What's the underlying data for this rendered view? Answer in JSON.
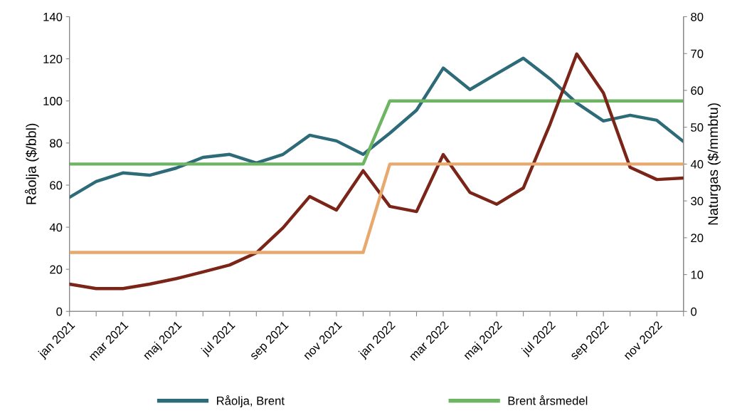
{
  "chart_data": {
    "type": "line",
    "ylabel": "Råolja ($/bbl)",
    "y2label": "Naturgas ($/mmbtu)",
    "categories": [
      "jan 2021",
      null,
      "mar 2021",
      null,
      "maj 2021",
      null,
      "jul 2021",
      null,
      "sep 2021",
      null,
      "nov 2021",
      null,
      "jan 2022",
      null,
      "mar 2022",
      null,
      "maj 2022",
      null,
      "jul 2022",
      null,
      "sep 2022",
      null,
      "nov 2022",
      null
    ],
    "series": [
      {
        "name": "Råolja, Brent",
        "color": "#2e6b78",
        "values": [
          54.2,
          61.7,
          65.8,
          64.7,
          68.1,
          73.2,
          74.6,
          70.5,
          74.6,
          83.7,
          81,
          74.6,
          84.7,
          95.6,
          115.6,
          105.4,
          112.9,
          120.3,
          110.5,
          99,
          90.5,
          93.2,
          90.8,
          80.7
        ]
      },
      {
        "color": "#7b2418",
        "axis": "y2",
        "values": [
          7.4,
          6.2,
          6.2,
          7.4,
          8.9,
          10.7,
          12.6,
          15.9,
          22.7,
          31.2,
          27.5,
          38.2,
          28.5,
          27.1,
          42.6,
          32.3,
          29.1,
          33.5,
          50.8,
          69.9,
          59.3,
          39.1,
          35.8,
          36.2
        ]
      },
      {
        "name": "Brent årsmedel",
        "color": "#6db463",
        "values": [
          70,
          70,
          70,
          70,
          70,
          70,
          70,
          70,
          70,
          70,
          70,
          70,
          100,
          100,
          100,
          100,
          100,
          100,
          100,
          100,
          100,
          100,
          100,
          100
        ]
      },
      {
        "color": "#e8a96e",
        "axis": "y2",
        "values": [
          16,
          16,
          16,
          16,
          16,
          16,
          16,
          16,
          16,
          16,
          16,
          16,
          40,
          40,
          40,
          40,
          40,
          40,
          40,
          40,
          40,
          40,
          40,
          40
        ]
      }
    ],
    "ylim": [
      0,
      140
    ],
    "yticks": [
      0,
      20,
      40,
      60,
      80,
      100,
      120,
      140
    ],
    "y2lim": [
      0,
      80
    ],
    "y2ticks": [
      0,
      10,
      20,
      30,
      40,
      50,
      60,
      70,
      80
    ],
    "legend": "bottom",
    "grid": false,
    "marker": "none",
    "line_style": "solid"
  }
}
